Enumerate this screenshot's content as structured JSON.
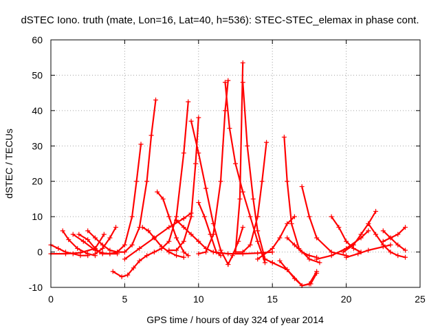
{
  "chart_data": {
    "type": "scatter",
    "title": "dSTEC Iono. truth (mate, Lon=16, Lat=40, h=536): STEC-STEC_elemax in phase cont.",
    "xlabel": "GPS time / hours of day 324 of year 2014",
    "ylabel": "dSTEC  / TECUs",
    "xlim": [
      0,
      25
    ],
    "ylim": [
      -10,
      60
    ],
    "xticks": [
      0,
      5,
      10,
      15,
      20,
      25
    ],
    "yticks": [
      -10,
      0,
      10,
      20,
      30,
      40,
      50,
      60
    ],
    "xtick_labels": [
      "0",
      "5",
      "10",
      "15",
      "20",
      "25"
    ],
    "ytick_labels": [
      "-10",
      "0",
      "10",
      "20",
      "30",
      "40",
      "50",
      "60"
    ],
    "grid": true,
    "legend": "none",
    "marker": "+",
    "color": "#ff0000",
    "series": [
      {
        "x": [
          0.0,
          0.5,
          1.0,
          1.5,
          2.0,
          2.5
        ],
        "y": [
          2.0,
          1.0,
          0.0,
          -0.5,
          -1.0,
          -1.0
        ]
      },
      {
        "x": [
          0.0,
          1.0,
          2.0,
          3.0,
          3.6
        ],
        "y": [
          -0.5,
          -0.5,
          -0.2,
          1.0,
          5.0
        ]
      },
      {
        "x": [
          0.8,
          1.2,
          1.8,
          2.5,
          3.0
        ],
        "y": [
          6.0,
          3.5,
          1.0,
          -0.5,
          -1.0
        ]
      },
      {
        "x": [
          1.5,
          2.2,
          3.0,
          3.5,
          4.0,
          4.5
        ],
        "y": [
          5.0,
          3.0,
          0.5,
          -0.3,
          -0.5,
          -0.5
        ]
      },
      {
        "x": [
          1.9,
          2.5,
          3.0,
          3.3
        ],
        "y": [
          5.0,
          3.5,
          1.0,
          0.0
        ]
      },
      {
        "x": [
          3.0,
          3.5,
          4.0,
          4.4
        ],
        "y": [
          -0.5,
          1.0,
          4.0,
          7.0
        ]
      },
      {
        "x": [
          2.5,
          3.0,
          3.5,
          4.0,
          4.5
        ],
        "y": [
          6.0,
          4.0,
          2.0,
          0.5,
          0.0
        ]
      },
      {
        "x": [
          3.5,
          4.0,
          4.5,
          5.0,
          5.5,
          5.8,
          6.1
        ],
        "y": [
          -0.5,
          -0.5,
          0.0,
          2.0,
          10.0,
          20.0,
          30.5
        ]
      },
      {
        "x": [
          4.2,
          4.8,
          5.2,
          5.6,
          6.0,
          6.5,
          7.0,
          7.5
        ],
        "y": [
          -5.5,
          -7.0,
          -6.5,
          -4.5,
          -2.5,
          -1.0,
          0.0,
          1.0
        ]
      },
      {
        "x": [
          4.5,
          5.0,
          5.5,
          6.0,
          6.5,
          6.8,
          7.1
        ],
        "y": [
          0.0,
          0.0,
          2.0,
          7.0,
          20.0,
          33.0,
          43.0
        ]
      },
      {
        "x": [
          6.2,
          6.6,
          7.0,
          7.5,
          8.0,
          8.5,
          9.0
        ],
        "y": [
          7.0,
          6.0,
          4.0,
          1.5,
          0.0,
          -1.0,
          -1.5
        ]
      },
      {
        "x": [
          7.2,
          7.6,
          8.0,
          8.5,
          9.0,
          9.3
        ],
        "y": [
          17.0,
          15.0,
          10.0,
          4.0,
          0.0,
          -1.0
        ]
      },
      {
        "x": [
          7.5,
          8.0,
          8.5,
          9.0,
          9.3
        ],
        "y": [
          1.0,
          3.0,
          10.0,
          28.0,
          42.5
        ]
      },
      {
        "x": [
          8.0,
          8.5,
          9.0,
          9.5,
          9.8,
          10.0
        ],
        "y": [
          0.5,
          0.5,
          3.0,
          10.0,
          25.0,
          38.0
        ]
      },
      {
        "x": [
          5.0,
          6.0,
          7.0,
          8.0,
          9.0,
          9.5
        ],
        "y": [
          -2.0,
          1.0,
          4.0,
          7.0,
          9.5,
          11.0
        ]
      },
      {
        "x": [
          9.5,
          10.0,
          10.5,
          11.0,
          11.5,
          12.0
        ],
        "y": [
          37.0,
          28.0,
          18.0,
          8.0,
          0.5,
          -3.5
        ]
      },
      {
        "x": [
          10.0,
          10.4,
          10.8,
          11.2,
          11.5
        ],
        "y": [
          14.0,
          10.0,
          5.0,
          0.0,
          -1.0
        ]
      },
      {
        "x": [
          10.0,
          10.5,
          11.0,
          11.5,
          11.8,
          12.0
        ],
        "y": [
          -0.5,
          0.0,
          5.0,
          20.0,
          40.0,
          48.5
        ]
      },
      {
        "x": [
          12.0,
          12.3,
          12.7,
          13.0
        ],
        "y": [
          -3.5,
          -1.0,
          3.0,
          7.0
        ]
      },
      {
        "x": [
          11.8,
          12.1,
          12.5,
          13.0,
          13.5,
          14.0,
          14.5
        ],
        "y": [
          48.0,
          35.0,
          25.0,
          17.0,
          10.0,
          3.0,
          -3.0
        ]
      },
      {
        "x": [
          12.5,
          12.8,
          13.0
        ],
        "y": [
          0.0,
          15.0,
          53.5
        ]
      },
      {
        "x": [
          13.0,
          13.3,
          13.7,
          14.0,
          14.5,
          15.0
        ],
        "y": [
          48.0,
          30.0,
          15.0,
          6.0,
          -2.0,
          -3.0
        ]
      },
      {
        "x": [
          12.5,
          13.0,
          13.5,
          14.0,
          14.3,
          14.6
        ],
        "y": [
          0.0,
          0.0,
          2.0,
          10.0,
          20.0,
          31.0
        ]
      },
      {
        "x": [
          14.0,
          15.0,
          15.5,
          16.0,
          16.5
        ],
        "y": [
          -2.0,
          1.0,
          4.0,
          8.0,
          10.0
        ]
      },
      {
        "x": [
          15.8,
          16.0,
          16.3,
          16.8,
          17.5,
          18.2
        ],
        "y": [
          32.5,
          20.0,
          8.0,
          1.0,
          -2.0,
          -3.0
        ]
      },
      {
        "x": [
          15.5,
          16.0,
          16.5,
          17.0,
          17.5,
          18.0
        ],
        "y": [
          -2.5,
          -5.0,
          -7.5,
          -9.5,
          -9.0,
          -5.5
        ]
      },
      {
        "x": [
          15.0,
          16.0,
          17.0,
          17.6,
          18.0
        ],
        "y": [
          -3.0,
          -5.0,
          -9.5,
          -9.0,
          -6.0
        ]
      },
      {
        "x": [
          16.0,
          16.5,
          17.0,
          17.5,
          18.0
        ],
        "y": [
          4.0,
          2.0,
          0.0,
          -1.0,
          -1.5
        ]
      },
      {
        "x": [
          17.0,
          17.5,
          18.0,
          19.0,
          20.0
        ],
        "y": [
          18.5,
          10.0,
          4.0,
          0.0,
          -1.0
        ]
      },
      {
        "x": [
          18.0,
          19.0,
          20.0,
          21.0,
          21.5
        ],
        "y": [
          -2.0,
          -1.0,
          1.0,
          4.0,
          6.0
        ]
      },
      {
        "x": [
          19.0,
          19.5,
          20.0,
          20.5,
          21.0
        ],
        "y": [
          10.0,
          7.0,
          3.0,
          1.0,
          0.0
        ]
      },
      {
        "x": [
          19.8,
          20.5,
          21.0,
          21.5,
          22.0
        ],
        "y": [
          0.0,
          2.0,
          5.0,
          8.0,
          11.5
        ]
      },
      {
        "x": [
          20.0,
          20.8,
          21.5,
          22.5,
          23.0
        ],
        "y": [
          -1.5,
          -0.5,
          0.5,
          1.5,
          2.0
        ]
      },
      {
        "x": [
          21.5,
          22.0,
          22.5,
          23.0,
          23.5,
          24.0
        ],
        "y": [
          8.0,
          5.0,
          2.0,
          0.0,
          -1.0,
          -1.5
        ]
      },
      {
        "x": [
          22.5,
          23.0,
          23.5,
          24.0
        ],
        "y": [
          3.0,
          4.0,
          5.0,
          7.0
        ]
      },
      {
        "x": [
          22.5,
          23.0,
          23.5,
          24.0
        ],
        "y": [
          6.0,
          4.0,
          2.0,
          0.5
        ]
      },
      {
        "x": [
          8.5,
          9.0,
          9.5,
          10.0,
          10.5,
          11.0,
          12.0,
          13.0,
          14.0,
          15.0
        ],
        "y": [
          9.0,
          7.0,
          5.0,
          3.0,
          1.0,
          0.0,
          -0.5,
          -0.5,
          -0.3,
          0.0
        ]
      }
    ]
  }
}
